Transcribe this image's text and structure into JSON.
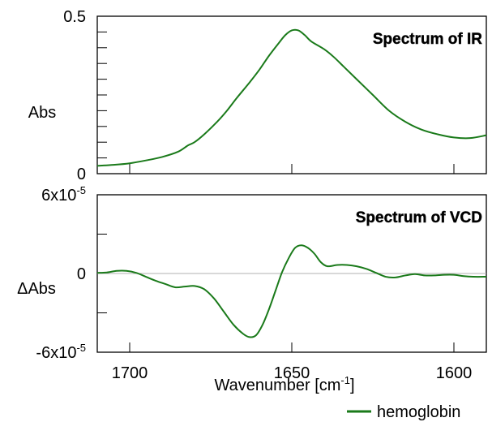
{
  "chart_data": [
    {
      "type": "line",
      "title": "Spectrum of IR",
      "ylabel": "Abs",
      "xlabel": "",
      "x_reversed": true,
      "xlim": [
        1710,
        1590
      ],
      "ylim": [
        0,
        0.5
      ],
      "y_tick_labels": [
        {
          "value": 0.5,
          "label": "0.5"
        },
        {
          "value": 0,
          "label": "0"
        }
      ],
      "y_minor_ticks": [
        0.05,
        0.1,
        0.15,
        0.2,
        0.25,
        0.3,
        0.35,
        0.4,
        0.45
      ],
      "x_ticks": [
        1700,
        1650,
        1600
      ],
      "color": "#1a7a1a",
      "series": [
        {
          "x": [
            1710,
            1705,
            1700,
            1695,
            1690,
            1685,
            1682,
            1680,
            1677,
            1673,
            1670,
            1667,
            1663,
            1660,
            1657,
            1654,
            1652,
            1650,
            1648,
            1646,
            1644,
            1640,
            1637,
            1634,
            1630,
            1625,
            1620,
            1615,
            1610,
            1605,
            1600,
            1595,
            1590
          ],
          "y": [
            0.025,
            0.028,
            0.033,
            0.042,
            0.053,
            0.07,
            0.09,
            0.1,
            0.125,
            0.165,
            0.2,
            0.24,
            0.29,
            0.33,
            0.375,
            0.415,
            0.44,
            0.455,
            0.455,
            0.44,
            0.42,
            0.395,
            0.37,
            0.34,
            0.3,
            0.25,
            0.2,
            0.165,
            0.14,
            0.125,
            0.115,
            0.113,
            0.122
          ]
        }
      ]
    },
    {
      "type": "line",
      "title": "Spectrum of VCD",
      "ylabel": "ΔAbs",
      "xlabel": "Wavenumber [cm-1]",
      "x_reversed": true,
      "xlim": [
        1710,
        1590
      ],
      "ylim": [
        -6e-05,
        6e-05
      ],
      "y_tick_labels": [
        {
          "value": 6e-05,
          "base": "6x10",
          "exp": "-5"
        },
        {
          "value": 0,
          "base": "0",
          "exp": ""
        },
        {
          "value": -6e-05,
          "base": "-6x10",
          "exp": "-5"
        }
      ],
      "y_minor_ticks": [
        3e-05,
        -3e-05
      ],
      "x_ticks": [
        1700,
        1650,
        1600
      ],
      "zero_line": true,
      "color": "#1a7a1a",
      "series": [
        {
          "name": "hemoglobin",
          "x": [
            1710,
            1707,
            1704,
            1701,
            1698,
            1695,
            1692,
            1689,
            1686,
            1683,
            1680,
            1677,
            1674,
            1671,
            1668,
            1665,
            1663,
            1661,
            1659,
            1657,
            1655,
            1653,
            1651,
            1649,
            1647,
            1645,
            1643,
            1641,
            1639,
            1636,
            1633,
            1630,
            1627,
            1624,
            1621,
            1618,
            1615,
            1612,
            1609,
            1606,
            1603,
            1600,
            1597,
            1594,
            1590
          ],
          "y": [
            5e-07,
            8e-07,
            2e-06,
            2e-06,
            5e-07,
            -2.5e-06,
            -5.5e-06,
            -8e-06,
            -1.05e-05,
            -1e-05,
            -9.5e-06,
            -1.2e-05,
            -1.9e-05,
            -2.9e-05,
            -3.9e-05,
            -4.6e-05,
            -4.85e-05,
            -4.7e-05,
            -3.9e-05,
            -2.7e-05,
            -1.3e-05,
            1e-06,
            1.15e-05,
            1.95e-05,
            2.15e-05,
            1.95e-05,
            1.5e-05,
            8.5e-06,
            5.5e-06,
            6.5e-06,
            6.5e-06,
            5.5e-06,
            3.5e-06,
            5e-07,
            -2.5e-06,
            -3e-06,
            -1.5e-06,
            -5e-07,
            -1.5e-06,
            -1.5e-06,
            -1e-06,
            -1e-06,
            -2e-06,
            -2.5e-06,
            -2.5e-06
          ]
        }
      ]
    }
  ],
  "xaxis": {
    "tick_labels": [
      "1700",
      "1650",
      "1600"
    ],
    "label_main": "Wavenumber [cm",
    "label_sup": "-1",
    "label_end": "]"
  },
  "legend": {
    "label": "hemoglobin"
  }
}
